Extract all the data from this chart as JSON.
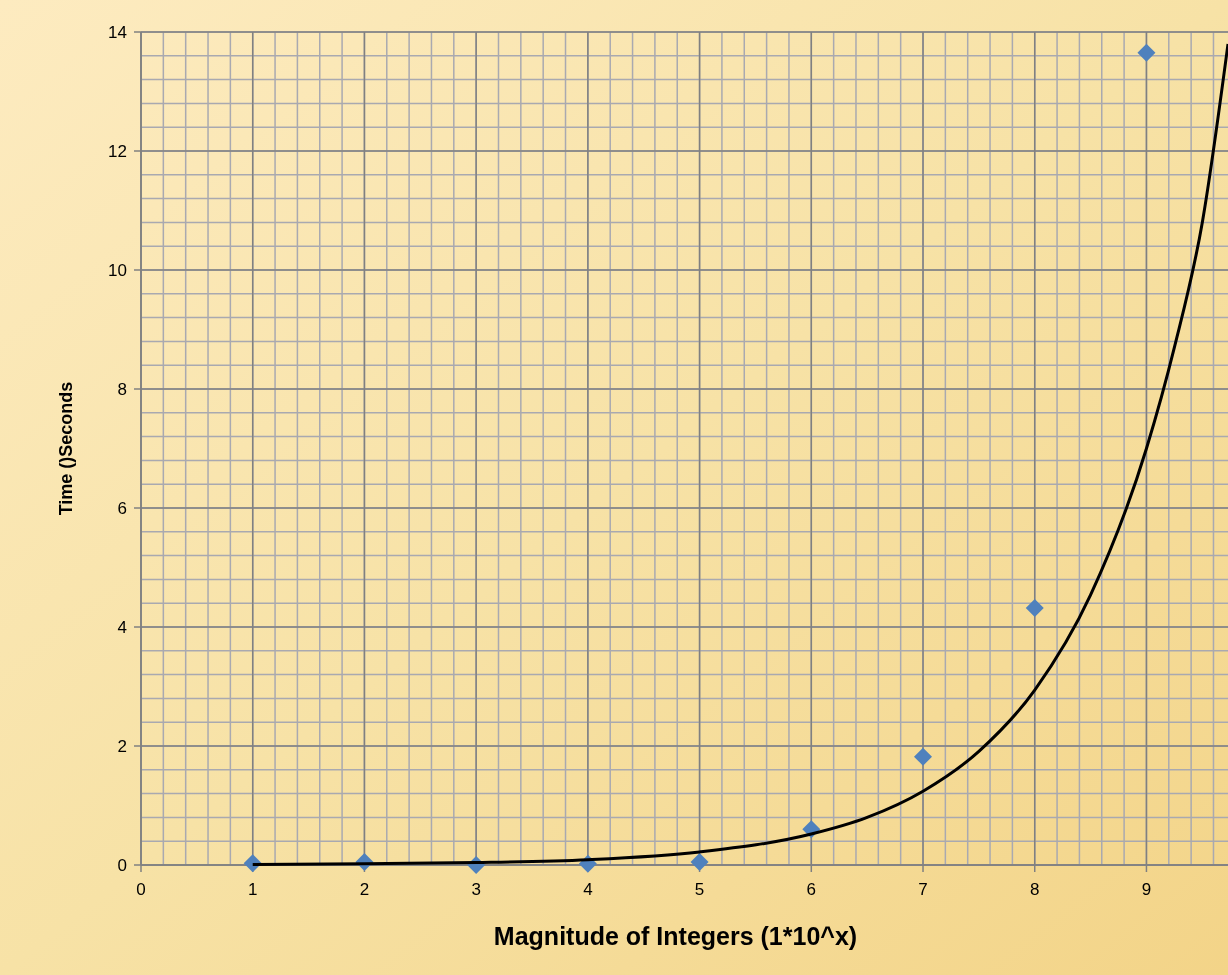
{
  "chart_data": {
    "type": "scatter",
    "xlabel": "Magnitude of Integers (1*10^x)",
    "ylabel": "Time ()Seconds",
    "xlim": [
      0,
      9.73
    ],
    "xticks": [
      0,
      1,
      2,
      3,
      4,
      5,
      6,
      7,
      8,
      9
    ],
    "ylim": [
      0,
      14
    ],
    "yticks": [
      0,
      2,
      4,
      6,
      8,
      10,
      12,
      14
    ],
    "grid": true,
    "series": [
      {
        "color": "#4f81bd",
        "marker": "diamond",
        "x": [
          1,
          2,
          3,
          4,
          5,
          6,
          7,
          8,
          9
        ],
        "values": [
          0.03,
          0.05,
          0,
          0.02,
          0.05,
          0.6,
          1.82,
          4.32,
          13.65
        ]
      },
      {
        "type": "line",
        "color": "#000000",
        "marker": "none",
        "line_style": "solid",
        "x": [
          1,
          2,
          3,
          4,
          5,
          6,
          6.5,
          7,
          7.5,
          8,
          8.5,
          9,
          9.25,
          9.5,
          9.73
        ],
        "values": [
          0.01,
          0.02,
          0.04,
          0.09,
          0.22,
          0.52,
          0.8,
          1.24,
          1.91,
          2.94,
          4.54,
          7.0,
          8.7,
          10.8,
          13.8
        ]
      }
    ]
  }
}
